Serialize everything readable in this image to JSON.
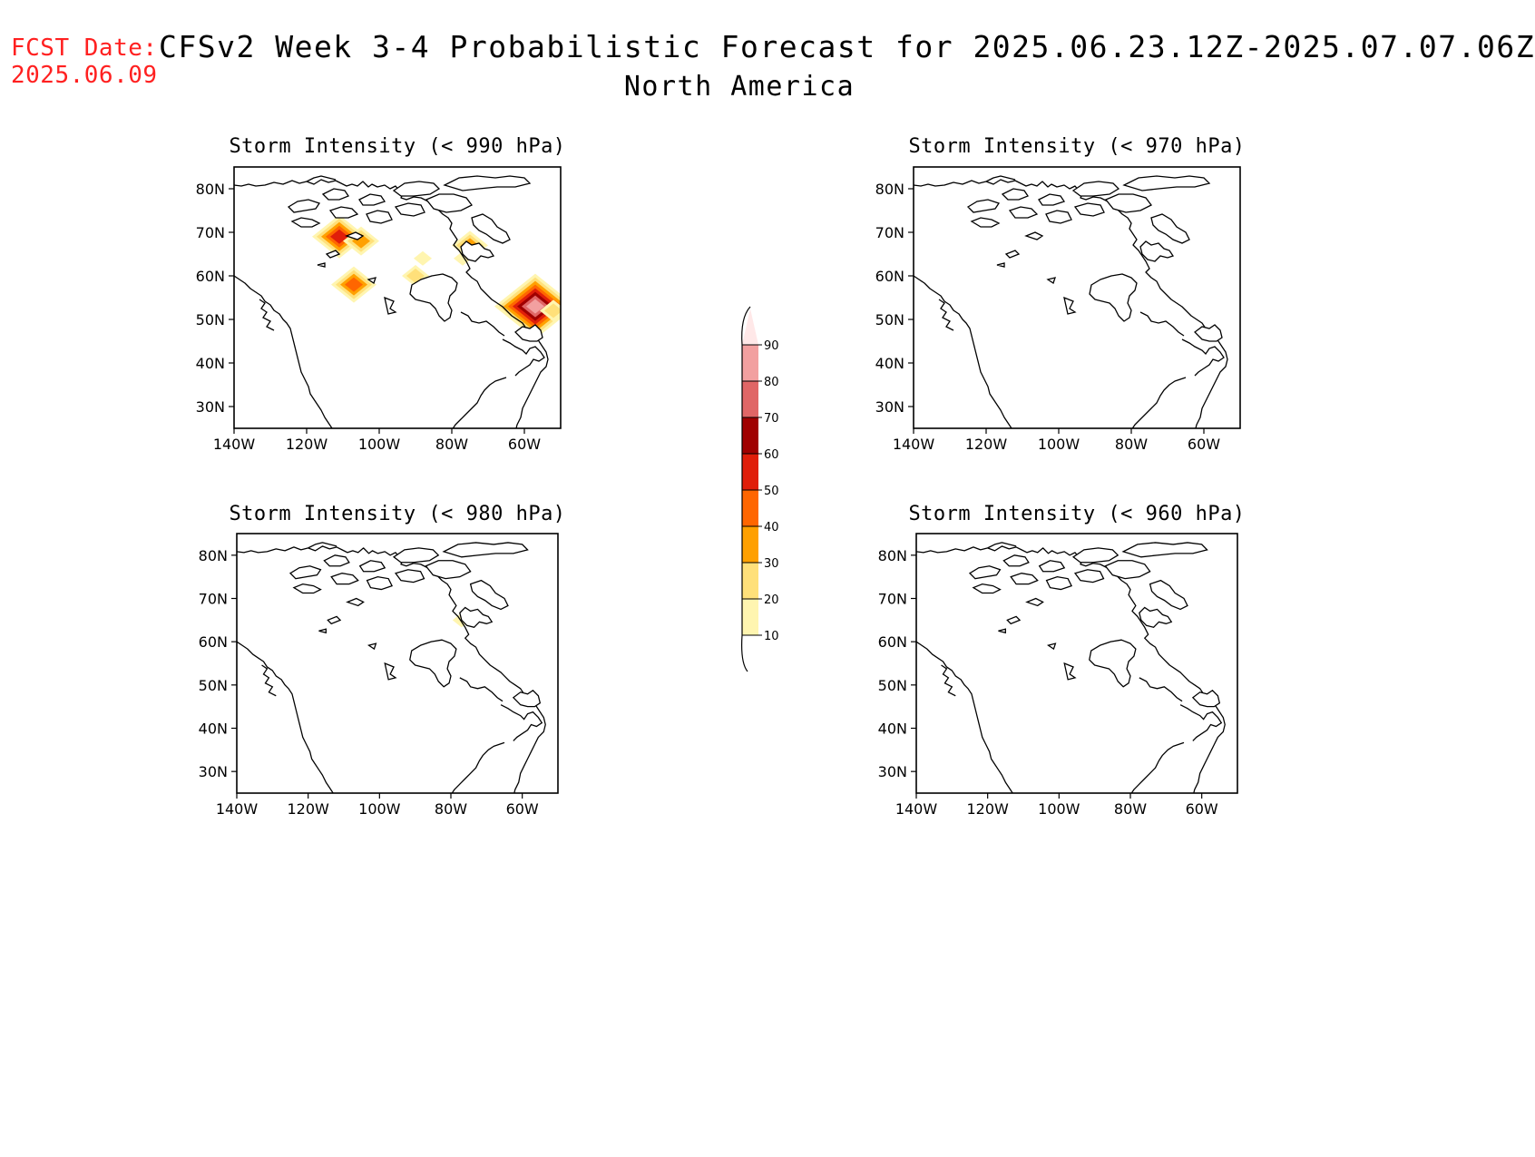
{
  "header": {
    "fcst_label": "FCST Date:",
    "fcst_date": "2025.06.09",
    "title": "CFSv2 Week 3-4 Probabilistic Forecast for 2025.06.23.12Z-2025.07.07.06Z",
    "region": "North America"
  },
  "map": {
    "lon_range": [
      -140,
      -50
    ],
    "lat_range": [
      25,
      85
    ],
    "lon_ticks": [
      "140W",
      "120W",
      "100W",
      "80W",
      "60W"
    ],
    "lat_ticks": [
      "80N",
      "70N",
      "60N",
      "50N",
      "40N",
      "30N"
    ]
  },
  "panels": [
    {
      "id": "p990",
      "title": "Storm Intensity (< 990 hPa)",
      "blobs": [
        {
          "lon": -111,
          "lat": 69,
          "p": 55
        },
        {
          "lon": -105,
          "lat": 68,
          "p": 35
        },
        {
          "lon": -107,
          "lat": 58,
          "p": 45
        },
        {
          "lon": -90,
          "lat": 60,
          "p": 20
        },
        {
          "lon": -88,
          "lat": 64,
          "p": 15
        },
        {
          "lon": -75,
          "lat": 67,
          "p": 30
        },
        {
          "lon": -77,
          "lat": 64,
          "p": 15
        },
        {
          "lon": -57,
          "lat": 53,
          "p": 80
        },
        {
          "lon": -52,
          "lat": 52,
          "p": 20
        }
      ]
    },
    {
      "id": "p970",
      "title": "Storm Intensity (< 970 hPa)",
      "blobs": []
    },
    {
      "id": "p980",
      "title": "Storm Intensity (< 980 hPa)",
      "blobs": [
        {
          "lon": -77,
          "lat": 65,
          "p": 12
        }
      ]
    },
    {
      "id": "p960",
      "title": "Storm Intensity (< 960 hPa)",
      "blobs": []
    }
  ],
  "colorbar": {
    "levels": [
      "10",
      "20",
      "30",
      "40",
      "50",
      "60",
      "70",
      "80",
      "90"
    ],
    "colors": [
      "#fff5b0",
      "#ffe07a",
      "#ffa000",
      "#ff6600",
      "#e01e0a",
      "#a00000",
      "#e06666",
      "#f2a0a0",
      "#ffe8e8"
    ]
  }
}
